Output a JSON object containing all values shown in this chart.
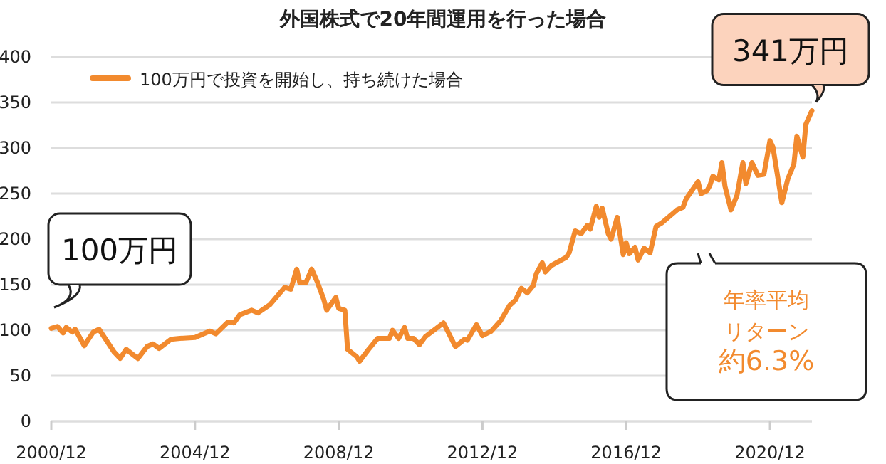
{
  "chart_data": {
    "type": "line",
    "title": "外国株式で20年間運用を行った場合",
    "x": [
      "2000-12",
      "2001-02",
      "2001-04",
      "2001-05",
      "2001-07",
      "2001-08",
      "2001-11",
      "2002-02",
      "2002-04",
      "2002-09",
      "2002-11",
      "2003-01",
      "2003-05",
      "2003-08",
      "2003-10",
      "2003-12",
      "2004-04",
      "2004-07",
      "2004-12",
      "2005-05",
      "2005-07",
      "2005-11",
      "2006-01",
      "2006-03",
      "2006-07",
      "2006-09",
      "2007-01",
      "2007-06",
      "2007-08",
      "2007-10",
      "2007-11",
      "2008-01",
      "2008-03",
      "2008-05",
      "2008-07",
      "2008-08",
      "2008-11",
      "2008-12",
      "2009-02",
      "2009-03",
      "2009-06",
      "2009-07",
      "2009-10",
      "2010-01",
      "2010-05",
      "2010-06",
      "2010-08",
      "2010-10",
      "2010-11",
      "2011-01",
      "2011-03",
      "2011-05",
      "2011-11",
      "2012-03",
      "2012-06",
      "2012-07",
      "2012-10",
      "2012-12",
      "2013-03",
      "2013-06",
      "2013-09",
      "2013-11",
      "2014-01",
      "2014-03",
      "2014-05",
      "2014-06",
      "2014-08",
      "2014-09",
      "2014-11",
      "2015-04",
      "2015-05",
      "2015-07",
      "2015-09",
      "2015-11",
      "2015-12",
      "2016-02",
      "2016-03",
      "2016-04",
      "2016-06",
      "2016-07",
      "2016-09",
      "2016-11",
      "2016-12",
      "2017-01",
      "2017-03",
      "2017-04",
      "2017-06",
      "2017-08",
      "2017-10",
      "2017-12",
      "2018-05",
      "2018-07",
      "2018-08",
      "2018-12",
      "2019-01",
      "2019-03",
      "2019-04",
      "2019-05",
      "2019-07",
      "2019-08",
      "2019-09",
      "2019-11",
      "2020-01",
      "2020-03",
      "2020-04",
      "2020-06",
      "2020-08",
      "2020-10",
      "2020-12",
      "2021-01",
      "2021-04",
      "2021-06",
      "2021-08",
      "2021-09",
      "2021-11",
      "2021-12",
      "2022-02"
    ],
    "series": [
      {
        "name": "100万円で投資を開始し、持ち続けた場合",
        "color": "#f28a2e",
        "values": [
          102,
          104,
          97,
          103,
          98,
          101,
          83,
          98,
          101,
          76,
          69,
          79,
          69,
          82,
          85,
          80,
          90,
          91,
          92,
          99,
          96,
          109,
          108,
          117,
          122,
          119,
          128,
          147,
          145,
          167,
          152,
          152,
          167,
          152,
          134,
          122,
          136,
          124,
          122,
          79,
          71,
          66,
          79,
          91,
          91,
          100,
          91,
          103,
          91,
          91,
          84,
          93,
          108,
          82,
          90,
          89,
          106,
          94,
          99,
          110,
          127,
          133,
          146,
          141,
          149,
          162,
          174,
          164,
          171,
          180,
          185,
          209,
          206,
          215,
          211,
          236,
          224,
          234,
          206,
          200,
          224,
          183,
          196,
          184,
          191,
          177,
          190,
          185,
          214,
          218,
          232,
          235,
          244,
          263,
          250,
          253,
          259,
          269,
          265,
          284,
          258,
          232,
          248,
          284,
          261,
          284,
          270,
          271,
          308,
          301,
          240,
          266,
          282,
          313,
          290,
          326,
          341
        ]
      }
    ],
    "xlim": [
      "2000-12",
      "2022-02"
    ],
    "xticks": [
      {
        "value": "2000-12",
        "label": "2000/12"
      },
      {
        "value": "2004-12",
        "label": "2004/12"
      },
      {
        "value": "2008-12",
        "label": "2008/12"
      },
      {
        "value": "2012-12",
        "label": "2012/12"
      },
      {
        "value": "2016-12",
        "label": "2016/12"
      },
      {
        "value": "2020-12",
        "label": "2020/12"
      }
    ],
    "ylim": [
      0,
      400
    ],
    "yticks": [
      0,
      50,
      100,
      150,
      200,
      250,
      300,
      350,
      400
    ],
    "grid": "y",
    "legend": "top left",
    "line_style": "solid",
    "marker": "none",
    "annotations": [
      {
        "text": "100万円",
        "x": "2000-12",
        "y": 100
      },
      {
        "text": "341万円",
        "x": "2022-02",
        "y": 341
      },
      "年率平均",
      "リターン",
      "約6.3%"
    ]
  }
}
